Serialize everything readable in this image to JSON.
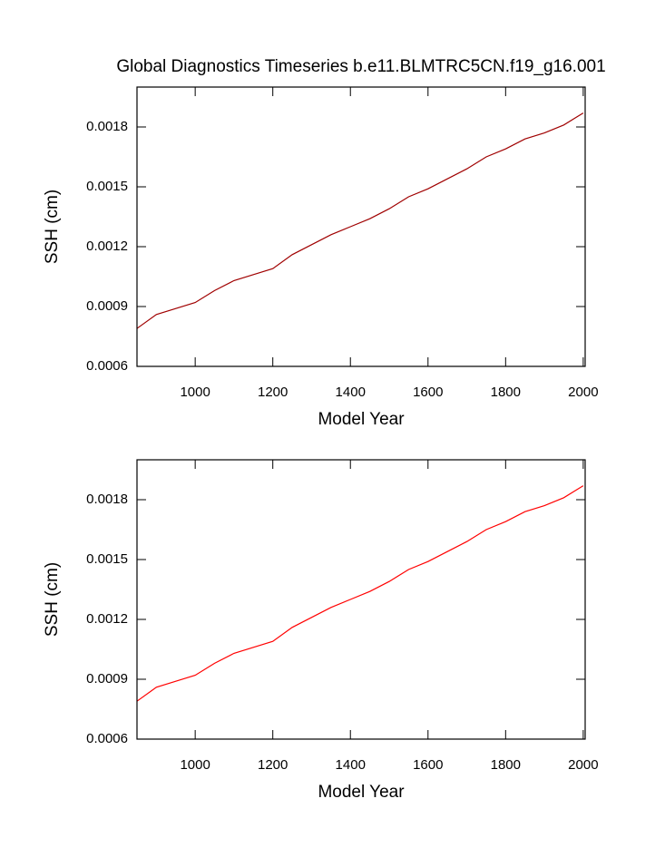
{
  "chart_data": [
    {
      "type": "line",
      "title": "Global Diagnostics Timeseries b.e11.BLMTRC5CN.f19_g16.001",
      "xlabel": "Model Year",
      "ylabel": "SSH (cm)",
      "x": [
        850,
        900,
        950,
        1000,
        1050,
        1100,
        1150,
        1200,
        1250,
        1300,
        1350,
        1400,
        1450,
        1500,
        1550,
        1600,
        1650,
        1700,
        1750,
        1800,
        1850,
        1900,
        1950,
        2000
      ],
      "series": [
        {
          "color": "#a00000",
          "values": [
            0.00079,
            0.00086,
            0.00089,
            0.00092,
            0.00098,
            0.00103,
            0.00106,
            0.00109,
            0.00116,
            0.00121,
            0.00126,
            0.0013,
            0.00134,
            0.00139,
            0.00145,
            0.00149,
            0.00154,
            0.00159,
            0.00165,
            0.00169,
            0.00174,
            0.00177,
            0.00181,
            0.00187
          ]
        }
      ],
      "xlim": [
        850,
        2005
      ],
      "xticks": [
        1000,
        1200,
        1400,
        1600,
        1800,
        2000
      ],
      "ylim": [
        0.0006,
        0.002
      ],
      "yticks": [
        0.0006,
        0.0009,
        0.0012,
        0.0015,
        0.0018
      ]
    },
    {
      "type": "line",
      "xlabel": "Model Year",
      "ylabel": "SSH (cm)",
      "x": [
        850,
        900,
        950,
        1000,
        1050,
        1100,
        1150,
        1200,
        1250,
        1300,
        1350,
        1400,
        1450,
        1500,
        1550,
        1600,
        1650,
        1700,
        1750,
        1800,
        1850,
        1900,
        1950,
        2000
      ],
      "series": [
        {
          "color": "#ff0000",
          "values": [
            0.00079,
            0.00086,
            0.00089,
            0.00092,
            0.00098,
            0.00103,
            0.00106,
            0.00109,
            0.00116,
            0.00121,
            0.00126,
            0.0013,
            0.00134,
            0.00139,
            0.00145,
            0.00149,
            0.00154,
            0.00159,
            0.00165,
            0.00169,
            0.00174,
            0.00177,
            0.00181,
            0.00187
          ]
        }
      ],
      "xlim": [
        850,
        2005
      ],
      "xticks": [
        1000,
        1200,
        1400,
        1600,
        1800,
        2000
      ],
      "ylim": [
        0.0006,
        0.002
      ],
      "yticks": [
        0.0006,
        0.0009,
        0.0012,
        0.0015,
        0.0018
      ]
    }
  ]
}
